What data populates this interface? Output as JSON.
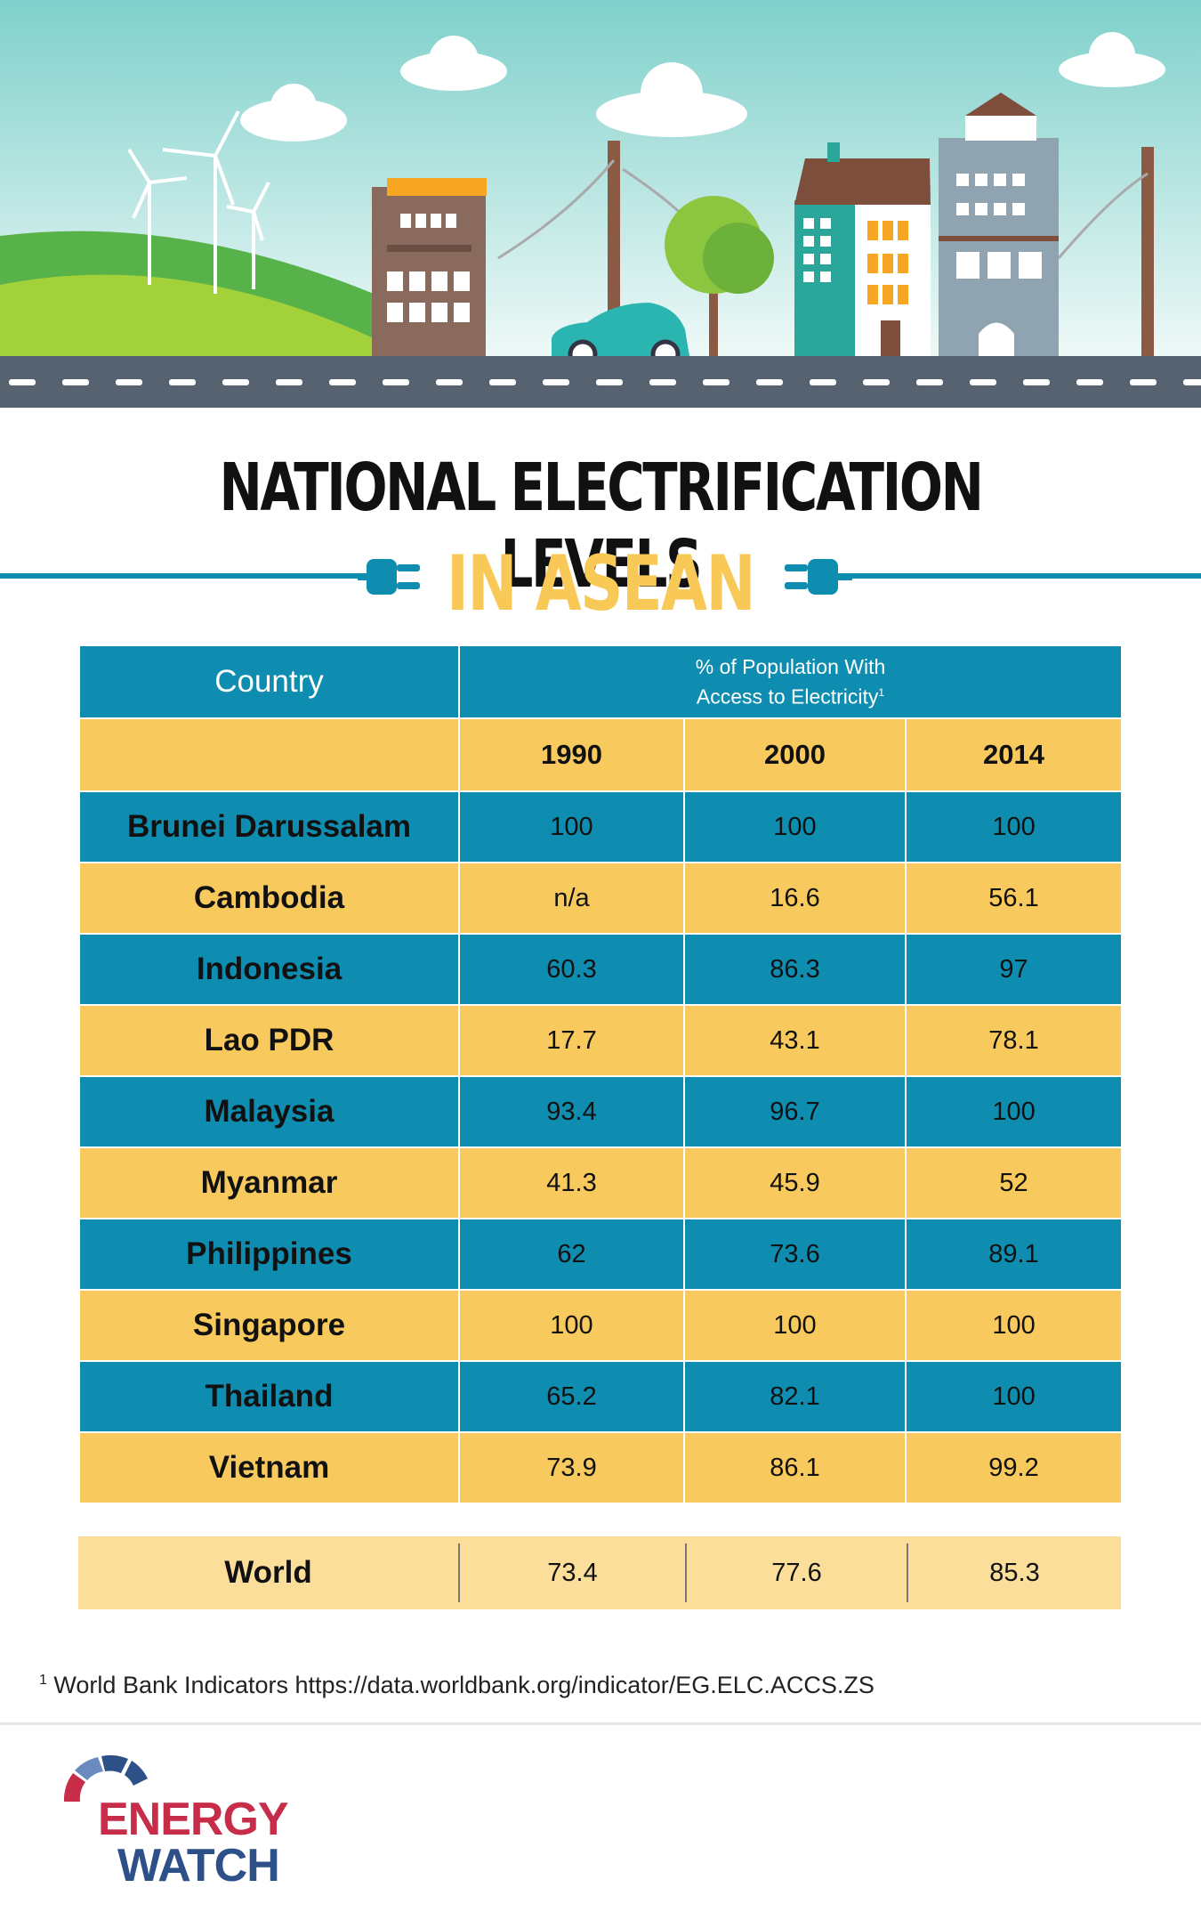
{
  "header": {
    "title": "NATIONAL ELECTRIFICATION LEVELS",
    "subtitle": "IN ASEAN"
  },
  "table": {
    "country_header": "Country",
    "metric_header_line1": "% of Population With",
    "metric_header_line2": "Access to Electricity",
    "metric_header_sup": "1",
    "years": [
      "1990",
      "2000",
      "2014"
    ],
    "rows": [
      {
        "country": "Brunei Darussalam",
        "values": [
          "100",
          "100",
          "100"
        ]
      },
      {
        "country": "Cambodia",
        "values": [
          "n/a",
          "16.6",
          "56.1"
        ]
      },
      {
        "country": "Indonesia",
        "values": [
          "60.3",
          "86.3",
          "97"
        ]
      },
      {
        "country": "Lao PDR",
        "values": [
          "17.7",
          "43.1",
          "78.1"
        ]
      },
      {
        "country": "Malaysia",
        "values": [
          "93.4",
          "96.7",
          "100"
        ]
      },
      {
        "country": "Myanmar",
        "values": [
          "41.3",
          "45.9",
          "52"
        ]
      },
      {
        "country": "Philippines",
        "values": [
          "62",
          "73.6",
          "89.1"
        ]
      },
      {
        "country": "Singapore",
        "values": [
          "100",
          "100",
          "100"
        ]
      },
      {
        "country": "Thailand",
        "values": [
          "65.2",
          "82.1",
          "100"
        ]
      },
      {
        "country": "Vietnam",
        "values": [
          "73.9",
          "86.1",
          "99.2"
        ]
      }
    ],
    "world": {
      "country": "World",
      "values": [
        "73.4",
        "77.6",
        "85.3"
      ]
    }
  },
  "footnote": {
    "marker": "1",
    "text": "World Bank Indicators https://data.worldbank.org/indicator/EG.ELC.ACCS.ZS"
  },
  "logo": {
    "line1": "ENERGY",
    "line2": "WATCH"
  },
  "colors": {
    "blue": "#0f8db1",
    "gold": "#f8c95d",
    "world_row": "#fcde9b",
    "subtitle": "#f8c957",
    "logo_red": "#c72c48",
    "logo_blue": "#2e5088"
  }
}
